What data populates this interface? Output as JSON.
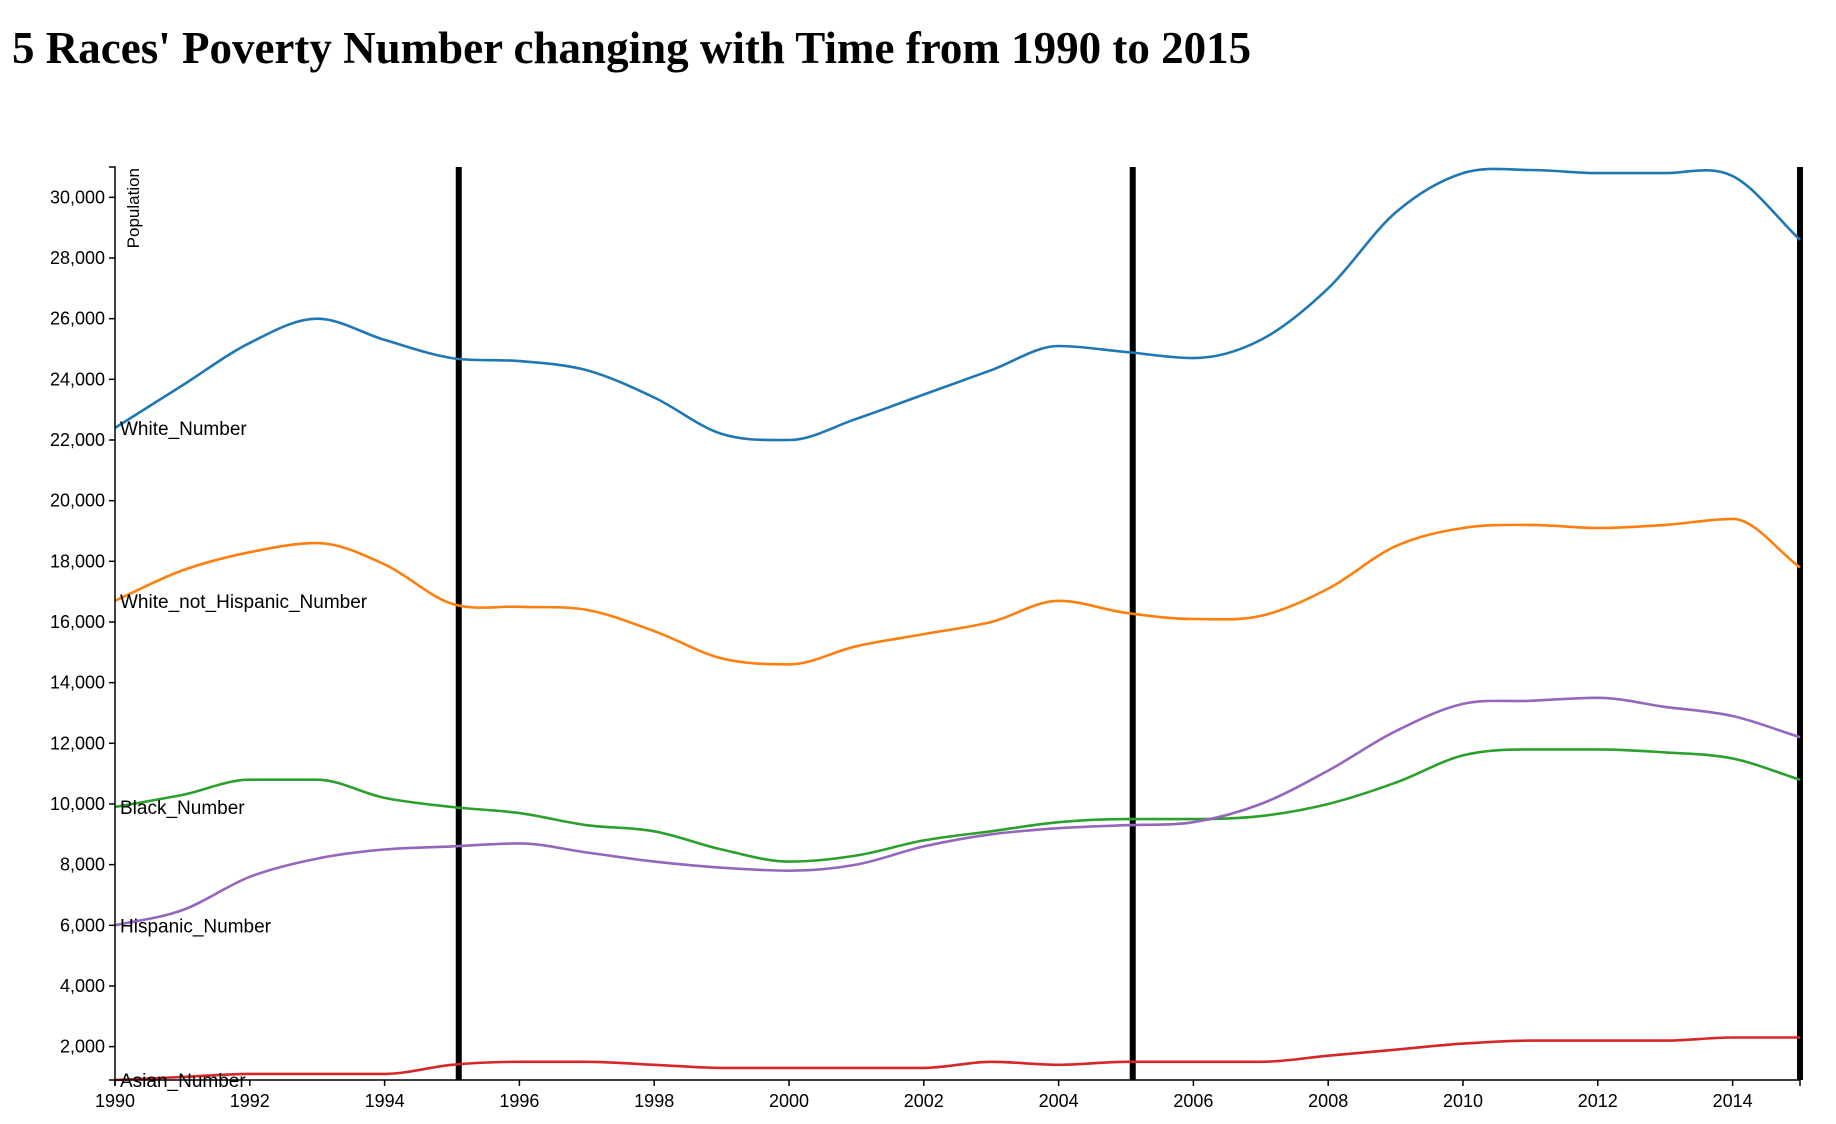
{
  "chart_data": {
    "type": "line",
    "title": "5 Races' Poverty Number changing with Time from 1990 to 2015",
    "xlabel": "",
    "ylabel": "Population",
    "xlim": [
      1990,
      2015
    ],
    "ylim": [
      900,
      31000
    ],
    "x_ticks": [
      1990,
      1992,
      1994,
      1996,
      1998,
      2000,
      2002,
      2004,
      2006,
      2008,
      2010,
      2012,
      2014
    ],
    "y_ticks": [
      2000,
      4000,
      6000,
      8000,
      10000,
      12000,
      14000,
      16000,
      18000,
      20000,
      22000,
      24000,
      26000,
      28000,
      30000
    ],
    "grid": false,
    "legend": "inline labels at left edge",
    "vertical_markers": [
      1995.1,
      2005.1,
      2015
    ],
    "x": [
      1990,
      1991,
      1992,
      1993,
      1994,
      1995,
      1996,
      1997,
      1998,
      1999,
      2000,
      2001,
      2002,
      2003,
      2004,
      2005,
      2006,
      2007,
      2008,
      2009,
      2010,
      2011,
      2012,
      2013,
      2014,
      2015
    ],
    "series": [
      {
        "name": "White_Number",
        "color": "#1f77b4",
        "values": [
          22400,
          23800,
          25200,
          26000,
          25300,
          24700,
          24600,
          24300,
          23400,
          22200,
          22000,
          22700,
          23500,
          24300,
          25100,
          24900,
          24700,
          25300,
          27000,
          29500,
          30800,
          30900,
          30800,
          30800,
          30700,
          28600
        ]
      },
      {
        "name": "White_not_Hispanic_Number",
        "color": "#ff7f0e",
        "values": [
          16700,
          17700,
          18300,
          18600,
          17900,
          16600,
          16500,
          16400,
          15700,
          14800,
          14600,
          15200,
          15600,
          16000,
          16700,
          16300,
          16100,
          16200,
          17100,
          18500,
          19100,
          19200,
          19100,
          19200,
          19400,
          17800
        ]
      },
      {
        "name": "Black_Number",
        "color": "#2ca02c",
        "values": [
          9900,
          10300,
          10800,
          10800,
          10200,
          9900,
          9700,
          9300,
          9100,
          8500,
          8100,
          8300,
          8800,
          9100,
          9400,
          9500,
          9500,
          9600,
          10000,
          10700,
          11600,
          11800,
          11800,
          11700,
          11500,
          10800
        ]
      },
      {
        "name": "Hispanic_Number",
        "color": "#9467bd",
        "values": [
          6000,
          6500,
          7600,
          8200,
          8500,
          8600,
          8700,
          8400,
          8100,
          7900,
          7800,
          8000,
          8600,
          9000,
          9200,
          9300,
          9400,
          10000,
          11100,
          12400,
          13300,
          13400,
          13500,
          13200,
          12900,
          12200
        ]
      },
      {
        "name": "Asian_Number",
        "color": "#d62728",
        "values": [
          900,
          1000,
          1100,
          1100,
          1100,
          1400,
          1500,
          1500,
          1400,
          1300,
          1300,
          1300,
          1300,
          1500,
          1400,
          1500,
          1500,
          1500,
          1700,
          1900,
          2100,
          2200,
          2200,
          2200,
          2300,
          2300
        ]
      }
    ]
  }
}
